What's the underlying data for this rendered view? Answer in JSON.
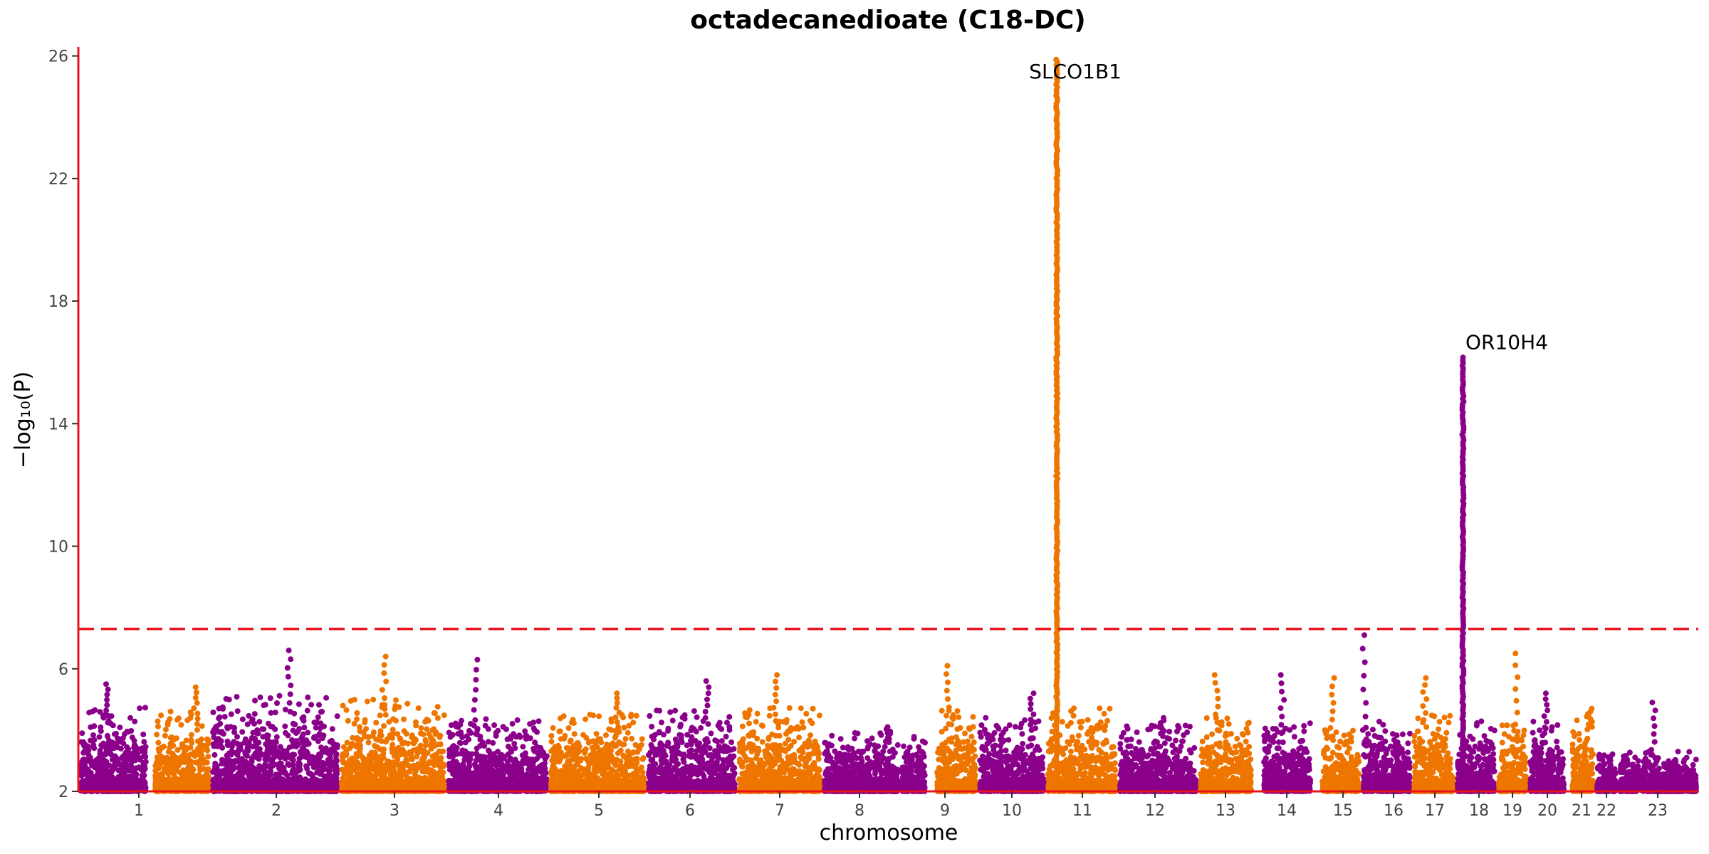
{
  "chart_data": {
    "type": "scatter",
    "subtype": "manhattan",
    "title": "octadecanedioate (C18-DC)",
    "xlabel": "chromosome",
    "ylabel": "−log₁₀(P)",
    "ylim": [
      2,
      26.2
    ],
    "yticks": [
      2,
      6,
      10,
      14,
      18,
      22,
      26
    ],
    "significance_threshold": 7.3,
    "colors": {
      "odd": "#8B008B",
      "even": "#EE7600",
      "axis": "#E8131B",
      "threshold": "#E8131B"
    },
    "chromosomes": [
      {
        "label": "1",
        "bg_max": 4.3,
        "peak": 5.5
      },
      {
        "label": "2",
        "bg_max": 4.2,
        "peak": 5.4
      },
      {
        "label": "3",
        "bg_max": 4.6,
        "peak": 6.6
      },
      {
        "label": "4",
        "bg_max": 4.5,
        "peak": 6.4
      },
      {
        "label": "5",
        "bg_max": 4.0,
        "peak": 6.3
      },
      {
        "label": "6",
        "bg_max": 4.1,
        "peak": 5.2
      },
      {
        "label": "7",
        "bg_max": 4.2,
        "peak": 5.6
      },
      {
        "label": "8",
        "bg_max": 4.3,
        "peak": 5.8
      },
      {
        "label": "9",
        "bg_max": 3.6,
        "peak": 4.1
      },
      {
        "label": "10",
        "bg_max": 4.2,
        "peak": 6.1
      },
      {
        "label": "11",
        "bg_max": 4.0,
        "peak": 5.2
      },
      {
        "label": "12",
        "bg_max": 4.3,
        "peak": 25.9
      },
      {
        "label": "13",
        "bg_max": 3.8,
        "peak": 4.4
      },
      {
        "label": "14",
        "bg_max": 4.0,
        "peak": 5.8
      },
      {
        "label": "15",
        "bg_max": 3.9,
        "peak": 5.8
      },
      {
        "label": "16",
        "bg_max": 3.8,
        "peak": 5.7
      },
      {
        "label": "17",
        "bg_max": 4.0,
        "peak": 7.1
      },
      {
        "label": "18",
        "bg_max": 4.1,
        "peak": 5.7
      },
      {
        "label": "19",
        "bg_max": 4.0,
        "peak": 16.2
      },
      {
        "label": "20",
        "bg_max": 3.8,
        "peak": 6.5
      },
      {
        "label": "21",
        "bg_max": 3.9,
        "peak": 5.2
      },
      {
        "label": "22",
        "bg_max": 4.1,
        "peak": 4.7
      },
      {
        "label": "23",
        "bg_max": 3.1,
        "peak": 4.9
      }
    ],
    "annotations": [
      {
        "text": "SLCO1B1",
        "chromosome": "12",
        "y": 25.9
      },
      {
        "text": "OR10H4",
        "chromosome": "19",
        "y": 16.2
      }
    ]
  }
}
